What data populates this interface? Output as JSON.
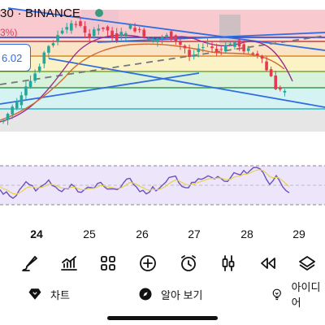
{
  "header": {
    "symbol_title": "30 · BINANCE",
    "change_pct": "3%)",
    "price_badge": "6.02"
  },
  "colors": {
    "red_zone": "#f8c9cf",
    "orange_zone": "#fbe3c6",
    "yellow_zone": "#fbf3c6",
    "green_zone": "#d9f2dc",
    "cyan_zone": "#d6f3f4",
    "gray_zone": "#e6e6e6",
    "trend_blue": "#2f6de1",
    "accent": "#2f6de1",
    "rsi_band": "#ede6fb",
    "rsi_line": "#6c4fbf"
  },
  "x_axis": {
    "labels": [
      {
        "text": "24",
        "bold": true
      },
      {
        "text": "25",
        "bold": false
      },
      {
        "text": "26",
        "bold": false
      },
      {
        "text": "27",
        "bold": false
      },
      {
        "text": "28",
        "bold": false
      },
      {
        "text": "29",
        "bold": false
      }
    ]
  },
  "toolbar": {
    "items": [
      {
        "name": "draw-brush-icon"
      },
      {
        "name": "indicators-icon"
      },
      {
        "name": "templates-grid-icon"
      },
      {
        "name": "add-circle-icon"
      },
      {
        "name": "alarm-clock-icon"
      },
      {
        "name": "candles-icon"
      },
      {
        "name": "replay-rewind-icon"
      },
      {
        "name": "layers-icon"
      }
    ]
  },
  "tabs": [
    {
      "label": "차트",
      "icon": "diamond-icon"
    },
    {
      "label": "알아 보기",
      "icon": "compass-icon"
    },
    {
      "label": "아이디어",
      "icon": "lightbulb-icon"
    }
  ]
}
